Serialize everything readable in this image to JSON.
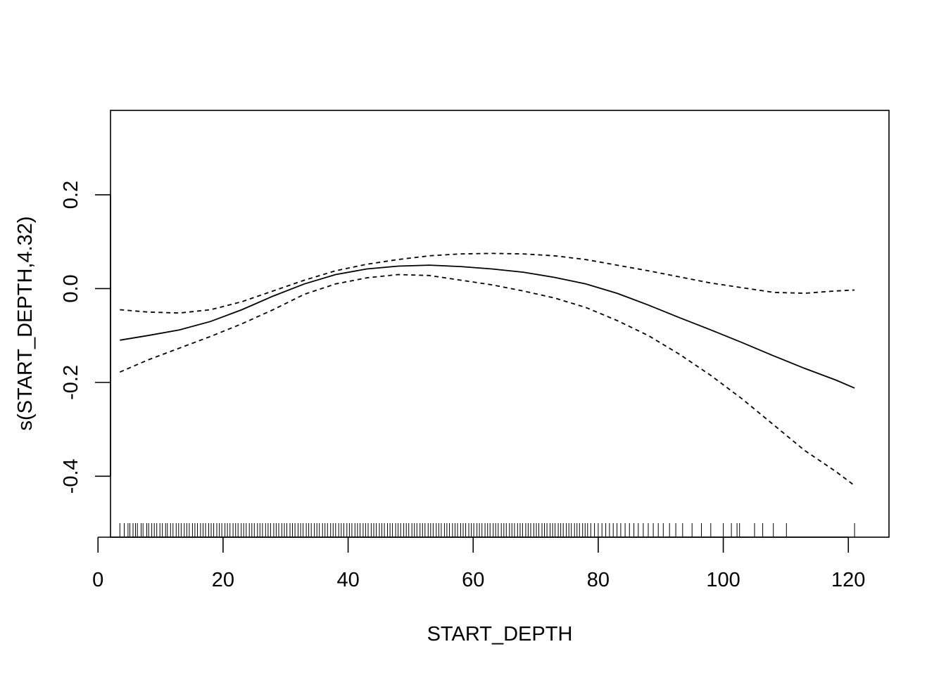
{
  "chart_data": {
    "type": "line",
    "title": "",
    "xlabel": "START_DEPTH",
    "ylabel": "s(START_DEPTH,4.32)",
    "xlim": [
      2,
      126.5
    ],
    "ylim": [
      -0.53,
      0.38
    ],
    "x_ticks": [
      0,
      20,
      40,
      60,
      80,
      100,
      120
    ],
    "x_tick_labels": [
      "0",
      "20",
      "40",
      "60",
      "80",
      "100",
      "120"
    ],
    "y_ticks": [
      -0.4,
      -0.2,
      0.0,
      0.2
    ],
    "y_tick_labels": [
      "-0.4",
      "-0.2",
      "0.0",
      "0.2"
    ],
    "grid": false,
    "x": [
      3.5,
      8,
      13,
      18,
      23,
      28,
      33,
      38,
      43,
      48,
      53,
      58,
      63,
      68,
      73,
      78,
      83,
      88,
      93,
      98,
      103,
      108,
      113,
      118,
      121
    ],
    "series": [
      {
        "style": "solid",
        "values": [
          -0.11,
          -0.1,
          -0.088,
          -0.07,
          -0.045,
          -0.016,
          0.01,
          0.03,
          0.042,
          0.048,
          0.05,
          0.047,
          0.042,
          0.035,
          0.024,
          0.01,
          -0.01,
          -0.035,
          -0.062,
          -0.088,
          -0.115,
          -0.143,
          -0.17,
          -0.195,
          -0.212
        ]
      },
      {
        "style": "dashed",
        "values": [
          -0.045,
          -0.05,
          -0.052,
          -0.045,
          -0.028,
          -0.005,
          0.018,
          0.038,
          0.052,
          0.062,
          0.07,
          0.074,
          0.075,
          0.074,
          0.07,
          0.062,
          0.05,
          0.038,
          0.025,
          0.012,
          0.002,
          -0.008,
          -0.01,
          -0.005,
          -0.003
        ]
      },
      {
        "style": "dashed",
        "values": [
          -0.178,
          -0.152,
          -0.127,
          -0.102,
          -0.075,
          -0.045,
          -0.012,
          0.01,
          0.023,
          0.03,
          0.028,
          0.018,
          0.008,
          -0.005,
          -0.02,
          -0.04,
          -0.068,
          -0.1,
          -0.14,
          -0.185,
          -0.235,
          -0.29,
          -0.345,
          -0.39,
          -0.42
        ]
      }
    ],
    "rug": [
      3.5,
      4.2,
      4.8,
      5.1,
      5.6,
      6.0,
      6.3,
      6.9,
      7.2,
      7.8,
      8.1,
      8.6,
      9.0,
      9.4,
      9.9,
      10.3,
      10.8,
      11.1,
      11.6,
      12.0,
      12.5,
      12.9,
      13.3,
      13.8,
      14.2,
      14.6,
      15.1,
      15.5,
      15.9,
      16.4,
      16.8,
      17.2,
      17.7,
      18.1,
      18.5,
      19.0,
      19.4,
      19.8,
      20.3,
      20.7,
      21.1,
      21.6,
      22.0,
      22.4,
      22.9,
      23.3,
      23.7,
      24.2,
      24.6,
      25.0,
      25.5,
      25.9,
      26.3,
      26.8,
      27.2,
      27.6,
      28.1,
      28.5,
      28.9,
      29.4,
      29.8,
      30.2,
      30.7,
      31.1,
      31.5,
      32.0,
      32.4,
      32.8,
      33.3,
      33.7,
      34.1,
      34.6,
      35.0,
      35.4,
      35.9,
      36.3,
      36.7,
      37.2,
      37.6,
      38.0,
      38.5,
      38.9,
      39.3,
      39.8,
      40.2,
      40.6,
      41.1,
      41.5,
      41.9,
      42.4,
      42.8,
      43.2,
      43.7,
      44.1,
      44.5,
      45.0,
      45.4,
      45.8,
      46.3,
      46.7,
      47.1,
      47.6,
      48.0,
      48.4,
      48.9,
      49.3,
      49.7,
      50.2,
      50.6,
      51.0,
      51.5,
      51.9,
      52.3,
      52.8,
      53.2,
      53.6,
      54.1,
      54.5,
      54.9,
      55.4,
      55.8,
      56.2,
      56.7,
      57.1,
      57.5,
      58.0,
      58.4,
      58.8,
      59.3,
      59.7,
      60.1,
      60.6,
      61.0,
      61.4,
      61.9,
      62.3,
      62.7,
      63.2,
      63.6,
      64.0,
      64.5,
      64.9,
      65.3,
      65.8,
      66.2,
      66.6,
      67.1,
      67.5,
      67.9,
      68.4,
      68.8,
      69.2,
      69.7,
      70.1,
      70.5,
      71.0,
      71.4,
      71.8,
      72.3,
      72.7,
      73.1,
      73.6,
      74.0,
      74.4,
      74.9,
      75.3,
      75.7,
      76.2,
      76.6,
      77.0,
      77.5,
      77.9,
      78.3,
      78.8,
      79.4,
      80.0,
      80.6,
      81.2,
      81.8,
      82.4,
      83.0,
      83.6,
      84.3,
      85.0,
      85.7,
      86.4,
      87.2,
      88.0,
      88.8,
      89.6,
      90.4,
      91.4,
      92.4,
      93.5,
      95.0,
      96.5,
      98.0,
      100.0,
      101.3,
      102.2,
      102.6,
      105.0,
      106.3,
      108.0,
      110.1,
      121.0
    ]
  }
}
